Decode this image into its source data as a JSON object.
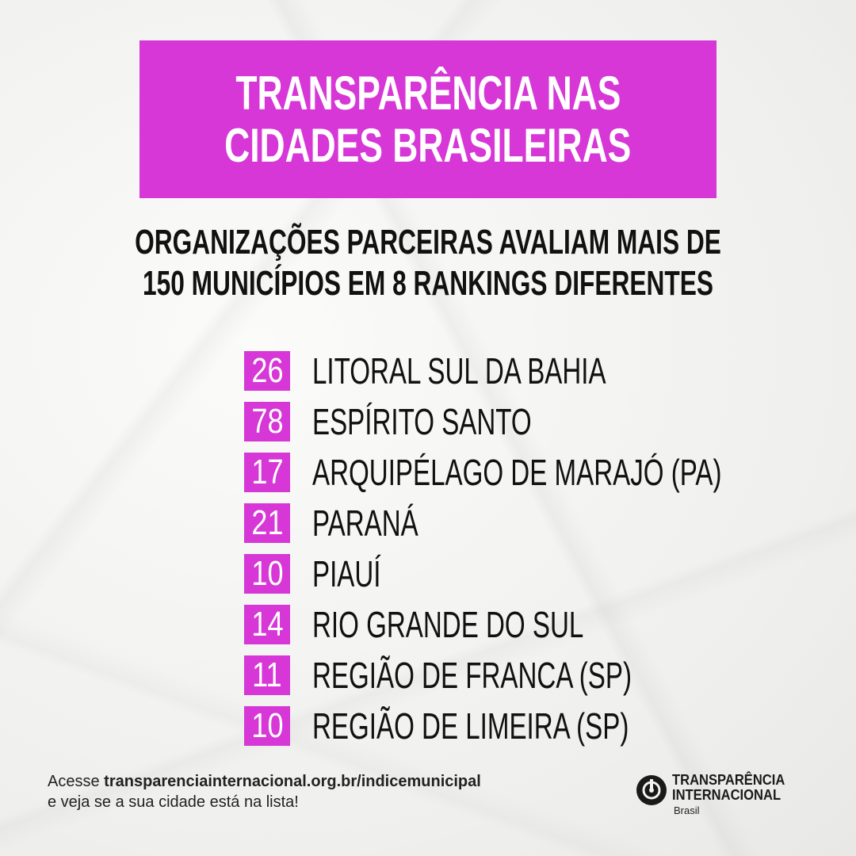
{
  "title": {
    "line1": "TRANSPARÊNCIA NAS",
    "line2": "CIDADES BRASILEIRAS"
  },
  "subtitle": {
    "line1": "ORGANIZAÇÕES PARCEIRAS AVALIAM MAIS DE",
    "line2": "150 MUNICÍPIOS EM 8 RANKINGS DIFERENTES"
  },
  "rankings": [
    {
      "count": "26",
      "name": "LITORAL SUL DA BAHIA"
    },
    {
      "count": "78",
      "name": "ESPÍRITO SANTO"
    },
    {
      "count": "17",
      "name": "ARQUIPÉLAGO DE MARAJÓ (PA)"
    },
    {
      "count": "21",
      "name": "PARANÁ"
    },
    {
      "count": "10",
      "name": "PIAUÍ"
    },
    {
      "count": "14",
      "name": "RIO GRANDE DO SUL"
    },
    {
      "count": "11",
      "name": "REGIÃO DE FRANCA (SP)"
    },
    {
      "count": "10",
      "name": "REGIÃO DE LIMEIRA (SP)"
    }
  ],
  "footer": {
    "prefix": "Acesse ",
    "url": "transparenciainternacional.org.br/indicemunicipal",
    "line2": "e veja se a sua cidade está na lista!"
  },
  "logo": {
    "icon": "transparency-international-logo-icon",
    "line1": "TRANSPARÊNCIA",
    "line2": "INTERNACIONAL",
    "sub": "Brasil"
  },
  "colors": {
    "accent": "#d637d6",
    "text": "#111111",
    "background": "#f3f3f1"
  }
}
